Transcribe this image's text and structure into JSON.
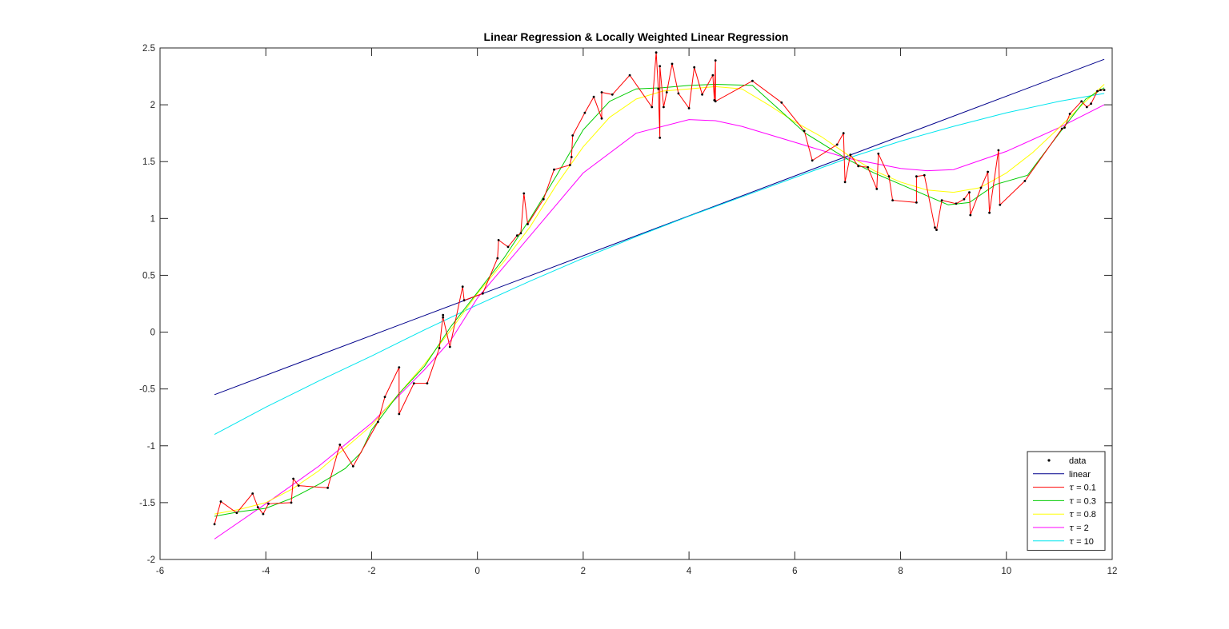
{
  "chart_data": {
    "type": "line",
    "title": "Linear Regression & Locally Weighted Linear Regression",
    "xlim": [
      -6,
      12
    ],
    "ylim": [
      -2,
      2.5
    ],
    "xticks": [
      -6,
      -4,
      -2,
      0,
      2,
      4,
      6,
      8,
      10,
      12
    ],
    "yticks": [
      -2,
      -1.5,
      -1,
      -0.5,
      0,
      0.5,
      1,
      1.5,
      2,
      2.5
    ],
    "xtick_labels": [
      "-6",
      "-4",
      "-2",
      "0",
      "2",
      "4",
      "6",
      "8",
      "10",
      "12"
    ],
    "ytick_labels": [
      "-2",
      "-1.5",
      "-1",
      "-0.5",
      "0",
      "0.5",
      "1",
      "1.5",
      "2",
      "2.5"
    ],
    "grid": false,
    "legend_position": "bottom-right",
    "legend": [
      {
        "key": "data",
        "prefix": "",
        "value": "data",
        "style": "marker",
        "color": "#000000"
      },
      {
        "key": "linear",
        "prefix": "",
        "value": "linear",
        "style": "line",
        "color": "#00008b"
      },
      {
        "key": "tau01",
        "prefix": "τ",
        "value": " = 0.1",
        "style": "line",
        "color": "#ff0000"
      },
      {
        "key": "tau03",
        "prefix": "τ",
        "value": " = 0.3",
        "style": "line",
        "color": "#00cc00"
      },
      {
        "key": "tau08",
        "prefix": "τ",
        "value": " = 0.8",
        "style": "line",
        "color": "#ffff00"
      },
      {
        "key": "tau2",
        "prefix": "τ",
        "value": " = 2",
        "style": "line",
        "color": "#ff00ff"
      },
      {
        "key": "tau10",
        "prefix": "τ",
        "value": " = 10",
        "style": "line",
        "color": "#00e5ee"
      }
    ],
    "scatter": {
      "color": "#000000",
      "points": [
        [
          -4.97,
          -1.69
        ],
        [
          -4.85,
          -1.49
        ],
        [
          -4.55,
          -1.59
        ],
        [
          -4.25,
          -1.42
        ],
        [
          -4.15,
          -1.54
        ],
        [
          -4.05,
          -1.6
        ],
        [
          -3.95,
          -1.51
        ],
        [
          -3.52,
          -1.5
        ],
        [
          -3.48,
          -1.29
        ],
        [
          -3.38,
          -1.35
        ],
        [
          -2.83,
          -1.37
        ],
        [
          -2.6,
          -0.99
        ],
        [
          -2.35,
          -1.18
        ],
        [
          -1.88,
          -0.79
        ],
        [
          -1.75,
          -0.57
        ],
        [
          -1.48,
          -0.31
        ],
        [
          -1.48,
          -0.72
        ],
        [
          -1.2,
          -0.45
        ],
        [
          -0.95,
          -0.45
        ],
        [
          -0.72,
          -0.14
        ],
        [
          -0.65,
          0.15
        ],
        [
          -0.65,
          0.13
        ],
        [
          -0.52,
          -0.13
        ],
        [
          -0.28,
          0.4
        ],
        [
          -0.25,
          0.28
        ],
        [
          0.1,
          0.34
        ],
        [
          0.38,
          0.65
        ],
        [
          0.4,
          0.81
        ],
        [
          0.58,
          0.75
        ],
        [
          0.75,
          0.85
        ],
        [
          0.82,
          0.87
        ],
        [
          0.88,
          1.22
        ],
        [
          0.95,
          0.95
        ],
        [
          1.25,
          1.17
        ],
        [
          1.45,
          1.43
        ],
        [
          1.75,
          1.47
        ],
        [
          1.78,
          1.54
        ],
        [
          1.8,
          1.73
        ],
        [
          2.03,
          1.93
        ],
        [
          2.2,
          2.07
        ],
        [
          2.35,
          1.88
        ],
        [
          2.35,
          2.11
        ],
        [
          2.55,
          2.09
        ],
        [
          2.88,
          2.26
        ],
        [
          3.3,
          1.98
        ],
        [
          3.38,
          2.46
        ],
        [
          3.42,
          2.14
        ],
        [
          3.45,
          1.71
        ],
        [
          3.45,
          2.34
        ],
        [
          3.52,
          1.98
        ],
        [
          3.58,
          2.11
        ],
        [
          3.68,
          2.36
        ],
        [
          3.8,
          2.1
        ],
        [
          4.0,
          1.97
        ],
        [
          4.1,
          2.33
        ],
        [
          4.25,
          2.09
        ],
        [
          4.45,
          2.26
        ],
        [
          4.48,
          2.04
        ],
        [
          4.5,
          2.39
        ],
        [
          4.5,
          2.03
        ],
        [
          5.2,
          2.21
        ],
        [
          5.75,
          2.02
        ],
        [
          6.18,
          1.77
        ],
        [
          6.33,
          1.51
        ],
        [
          6.8,
          1.65
        ],
        [
          6.92,
          1.75
        ],
        [
          6.95,
          1.32
        ],
        [
          7.05,
          1.56
        ],
        [
          7.2,
          1.46
        ],
        [
          7.38,
          1.45
        ],
        [
          7.55,
          1.26
        ],
        [
          7.58,
          1.57
        ],
        [
          7.78,
          1.37
        ],
        [
          7.85,
          1.16
        ],
        [
          8.3,
          1.14
        ],
        [
          8.3,
          1.37
        ],
        [
          8.45,
          1.38
        ],
        [
          8.65,
          0.92
        ],
        [
          8.68,
          0.9
        ],
        [
          8.78,
          1.16
        ],
        [
          9.05,
          1.13
        ],
        [
          9.2,
          1.17
        ],
        [
          9.3,
          1.23
        ],
        [
          9.32,
          1.03
        ],
        [
          9.52,
          1.27
        ],
        [
          9.65,
          1.41
        ],
        [
          9.68,
          1.05
        ],
        [
          9.85,
          1.6
        ],
        [
          9.88,
          1.12
        ],
        [
          10.35,
          1.33
        ],
        [
          11.05,
          1.79
        ],
        [
          11.1,
          1.8
        ],
        [
          11.2,
          1.92
        ],
        [
          11.42,
          2.03
        ],
        [
          11.52,
          1.98
        ],
        [
          11.6,
          2.01
        ],
        [
          11.72,
          2.12
        ],
        [
          11.78,
          2.13
        ],
        [
          11.85,
          2.13
        ]
      ]
    },
    "series": [
      {
        "key": "linear",
        "color": "#00008b",
        "x": [
          -4.97,
          11.85
        ],
        "y": [
          -0.55,
          2.4
        ]
      },
      {
        "key": "tau10",
        "color": "#00e5ee",
        "x": [
          -4.97,
          -4,
          -3,
          -2,
          -1,
          0,
          1,
          2,
          3,
          4,
          5,
          6,
          7,
          8,
          9,
          10,
          11,
          11.85
        ],
        "y": [
          -0.9,
          -0.66,
          -0.43,
          -0.21,
          0.02,
          0.24,
          0.45,
          0.65,
          0.84,
          1.02,
          1.19,
          1.36,
          1.53,
          1.68,
          1.81,
          1.93,
          2.03,
          2.1
        ]
      },
      {
        "key": "tau2",
        "color": "#ff00ff",
        "x": [
          -4.97,
          -4,
          -3,
          -2,
          -1,
          -0.5,
          0,
          1,
          2,
          3,
          4,
          4.5,
          5,
          6,
          7,
          8,
          8.5,
          9,
          10,
          11,
          11.85
        ],
        "y": [
          -1.82,
          -1.51,
          -1.18,
          -0.8,
          -0.33,
          -0.07,
          0.3,
          0.85,
          1.4,
          1.75,
          1.87,
          1.86,
          1.81,
          1.67,
          1.53,
          1.44,
          1.42,
          1.43,
          1.59,
          1.8,
          2.0
        ]
      },
      {
        "key": "tau08",
        "color": "#ffff00",
        "x": [
          -4.97,
          -4.5,
          -4,
          -3.5,
          -3,
          -2.5,
          -2,
          -1.5,
          -1,
          -0.5,
          0,
          0.5,
          1,
          1.5,
          2,
          2.5,
          3,
          3.5,
          4,
          4.5,
          5,
          5.5,
          6,
          6.5,
          7,
          7.5,
          8,
          8.5,
          9,
          9.5,
          10,
          10.5,
          11,
          11.5,
          11.85
        ],
        "y": [
          -1.6,
          -1.56,
          -1.5,
          -1.38,
          -1.22,
          -1.02,
          -0.82,
          -0.55,
          -0.28,
          0.02,
          0.34,
          0.62,
          0.93,
          1.3,
          1.63,
          1.89,
          2.05,
          2.12,
          2.14,
          2.16,
          2.14,
          2.0,
          1.85,
          1.72,
          1.56,
          1.42,
          1.32,
          1.25,
          1.23,
          1.27,
          1.4,
          1.58,
          1.8,
          2.03,
          2.18
        ]
      },
      {
        "key": "tau03",
        "color": "#00cc00",
        "x": [
          -4.97,
          -4.5,
          -4,
          -3.5,
          -3,
          -2.5,
          -2.2,
          -2,
          -1.5,
          -1,
          -0.5,
          0,
          0.5,
          1,
          1.5,
          2,
          2.5,
          3,
          3.5,
          4,
          4.5,
          5.2,
          6.2,
          7,
          7.5,
          8,
          8.5,
          8.9,
          9.3,
          9.8,
          10.4,
          11,
          11.5,
          11.85
        ],
        "y": [
          -1.62,
          -1.58,
          -1.55,
          -1.46,
          -1.34,
          -1.2,
          -1.06,
          -0.86,
          -0.55,
          -0.3,
          0.05,
          0.35,
          0.65,
          1.0,
          1.38,
          1.78,
          2.03,
          2.14,
          2.15,
          2.17,
          2.18,
          2.17,
          1.75,
          1.52,
          1.4,
          1.3,
          1.2,
          1.12,
          1.14,
          1.3,
          1.38,
          1.75,
          2.05,
          2.15
        ]
      }
    ]
  }
}
